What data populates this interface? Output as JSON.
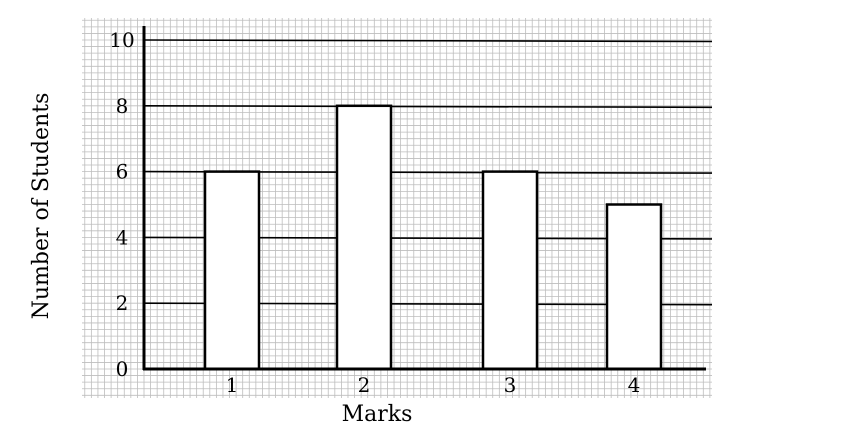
{
  "chart_data": {
    "type": "bar",
    "categories": [
      "1",
      "2",
      "3",
      "4"
    ],
    "values": [
      6,
      8,
      6,
      5
    ],
    "title": "",
    "xlabel": "Marks",
    "ylabel": "Number of Students",
    "ylim": [
      0,
      10
    ],
    "yticks": [
      "0",
      "2",
      "4",
      "6",
      "8",
      "10"
    ],
    "grid": true,
    "legend": "none",
    "colors": {
      "bar_fill": "#ffffff",
      "bar_stroke": "#000000",
      "grid_minor": "#bdbdbd",
      "grid_major": "#000000"
    }
  }
}
